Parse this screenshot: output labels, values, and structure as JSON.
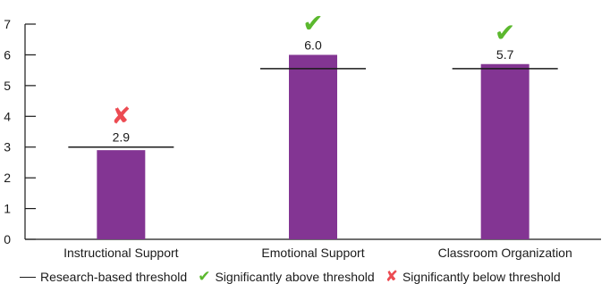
{
  "colors": {
    "bar": "#833593",
    "axis": "#1a1a1a",
    "check": "#5bb82e",
    "cross": "#ec4b52"
  },
  "chart_data": {
    "type": "bar",
    "categories": [
      "Instructional Support",
      "Emotional Support",
      "Classroom Organization"
    ],
    "values": [
      2.9,
      6.0,
      5.7
    ],
    "value_labels": [
      "2.9",
      "6.0",
      "5.7"
    ],
    "thresholds": [
      3.0,
      5.55,
      5.55
    ],
    "significance": [
      "below",
      "above",
      "above"
    ],
    "ylim": [
      0,
      7
    ],
    "yticks": [
      0,
      1,
      2,
      3,
      4,
      5,
      6,
      7
    ],
    "grid": false,
    "legend_position": "bottom"
  },
  "legend": {
    "threshold_label": "Research-based threshold",
    "above_label": "Significantly above threshold",
    "below_label": "Significantly below threshold",
    "above_icon": "checkmark-icon",
    "below_icon": "cross-icon"
  }
}
